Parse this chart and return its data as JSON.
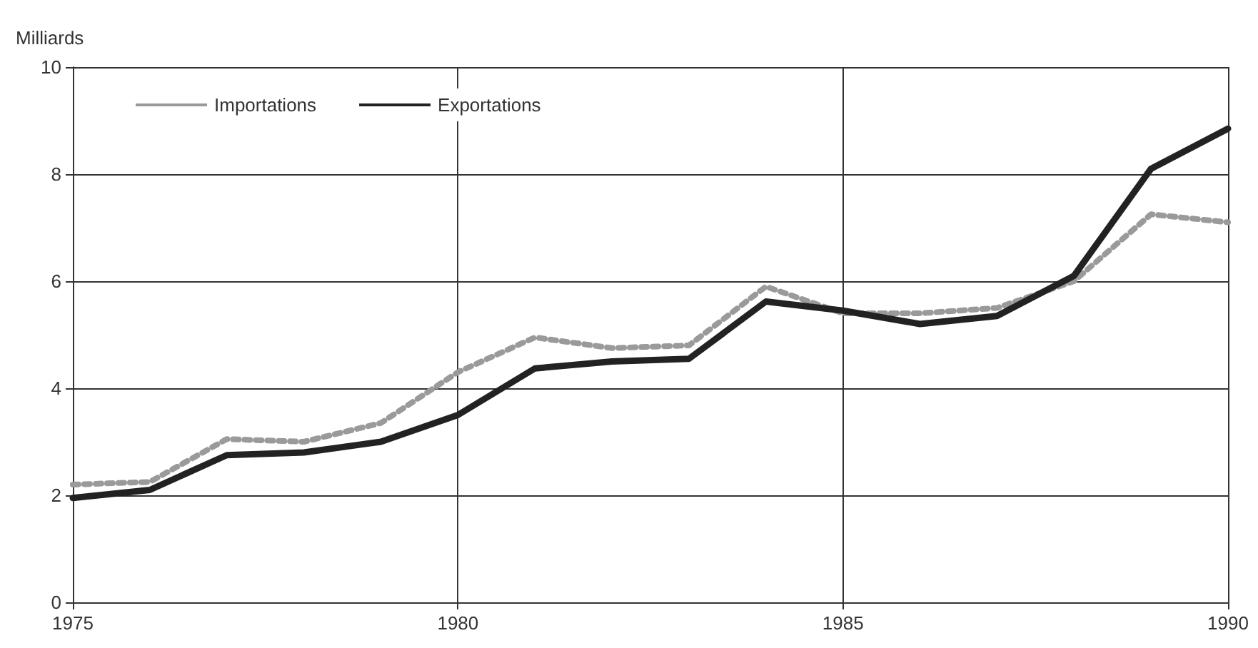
{
  "chart_data": {
    "type": "line",
    "ylabel": "Milliards",
    "x": [
      1975,
      1976,
      1977,
      1978,
      1979,
      1980,
      1981,
      1982,
      1983,
      1984,
      1985,
      1986,
      1987,
      1988,
      1989,
      1990
    ],
    "series": [
      {
        "name": "Importations",
        "color": "#9a9a9a",
        "line_style": "dotted",
        "values": [
          2.2,
          2.25,
          3.05,
          3.0,
          3.35,
          4.3,
          4.95,
          4.75,
          4.8,
          5.9,
          5.4,
          5.4,
          5.5,
          6.0,
          7.25,
          7.1
        ]
      },
      {
        "name": "Exportations",
        "color": "#222222",
        "line_style": "solid",
        "values": [
          1.95,
          2.1,
          2.75,
          2.8,
          3.0,
          3.5,
          4.37,
          4.5,
          4.55,
          5.62,
          5.45,
          5.2,
          5.35,
          6.1,
          8.1,
          8.85
        ]
      }
    ],
    "xlim": [
      1975,
      1990
    ],
    "xticks": [
      1975,
      1980,
      1985,
      1990
    ],
    "ylim": [
      0,
      10
    ],
    "yticks": [
      0,
      2,
      4,
      6,
      8,
      10
    ],
    "grid": true,
    "legend": "top left",
    "marker": "none"
  }
}
